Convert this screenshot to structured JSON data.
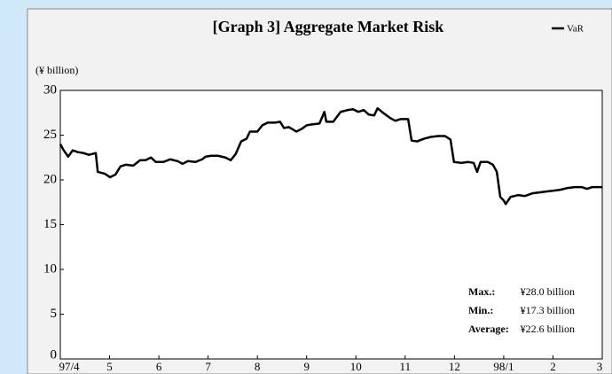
{
  "chart_data": {
    "type": "line",
    "title": "[Graph 3] Aggregate Market Risk",
    "y_label": "(¥ billion)",
    "series": [
      {
        "name": "VaR",
        "color": "#000000",
        "x": [
          0,
          0.07,
          0.16,
          0.25,
          0.36,
          0.47,
          0.58,
          0.72,
          0.76,
          0.9,
          1.01,
          1.12,
          1.22,
          1.33,
          1.48,
          1.62,
          1.73,
          1.84,
          1.94,
          2.09,
          2.23,
          2.38,
          2.48,
          2.59,
          2.74,
          2.88,
          2.95,
          3.06,
          3.2,
          3.35,
          3.46,
          3.56,
          3.67,
          3.78,
          3.85,
          4.0,
          4.1,
          4.21,
          4.36,
          4.46,
          4.54,
          4.64,
          4.79,
          4.9,
          5.0,
          5.11,
          5.26,
          5.36,
          5.4,
          5.54,
          5.69,
          5.83,
          5.94,
          6.05,
          6.16,
          6.26,
          6.37,
          6.44,
          6.55,
          6.7,
          6.8,
          6.91,
          7.06,
          7.13,
          7.24,
          7.38,
          7.52,
          7.67,
          7.81,
          7.92,
          7.99,
          8.14,
          8.28,
          8.39,
          8.46,
          8.53,
          8.68,
          8.78,
          8.86,
          8.93,
          9.0,
          9.04,
          9.14,
          9.29,
          9.43,
          9.58,
          9.72,
          9.86,
          10.01,
          10.15,
          10.3,
          10.44,
          10.58,
          10.69,
          10.8,
          10.94,
          11
        ],
        "values": [
          24.0,
          23.3,
          22.6,
          23.3,
          23.1,
          23.0,
          22.8,
          23.0,
          20.9,
          20.7,
          20.3,
          20.6,
          21.5,
          21.7,
          21.6,
          22.2,
          22.2,
          22.5,
          22.0,
          22.0,
          22.3,
          22.1,
          21.8,
          22.1,
          22.0,
          22.3,
          22.6,
          22.7,
          22.7,
          22.5,
          22.2,
          22.9,
          24.3,
          24.6,
          25.4,
          25.4,
          26.1,
          26.4,
          26.4,
          26.5,
          25.8,
          25.9,
          25.4,
          25.7,
          26.1,
          26.2,
          26.3,
          27.6,
          26.5,
          26.5,
          27.6,
          27.8,
          27.9,
          27.6,
          27.8,
          27.3,
          27.2,
          28.0,
          27.5,
          26.9,
          26.6,
          26.8,
          26.8,
          24.4,
          24.3,
          24.6,
          24.8,
          24.9,
          24.9,
          24.5,
          22.0,
          21.9,
          22.0,
          21.9,
          20.9,
          22.0,
          22.0,
          21.7,
          20.9,
          18.1,
          17.7,
          17.3,
          18.1,
          18.3,
          18.2,
          18.5,
          18.6,
          18.7,
          18.8,
          18.9,
          19.1,
          19.2,
          19.2,
          19.0,
          19.2,
          19.2,
          19.2
        ]
      }
    ],
    "xlim": [
      0,
      11
    ],
    "xticks": [
      {
        "value": 0,
        "label": "97/4"
      },
      {
        "value": 1,
        "label": "5"
      },
      {
        "value": 2,
        "label": "6"
      },
      {
        "value": 3,
        "label": "7"
      },
      {
        "value": 4,
        "label": "8"
      },
      {
        "value": 5,
        "label": "9"
      },
      {
        "value": 6,
        "label": "10"
      },
      {
        "value": 7,
        "label": "11"
      },
      {
        "value": 8,
        "label": "12"
      },
      {
        "value": 9,
        "label": "98/1"
      },
      {
        "value": 10,
        "label": "2"
      },
      {
        "value": 11,
        "label": "3"
      }
    ],
    "ylim": [
      0,
      30
    ],
    "yticks": [
      0,
      5,
      10,
      15,
      20,
      25,
      30
    ],
    "legend": "top-right",
    "annotations": [
      {
        "label": "Max.:",
        "text": "¥28.0 billion"
      },
      {
        "label": "Min.:",
        "text": "¥17.3 billion"
      },
      {
        "label": "Average:",
        "text": "¥22.6 billion"
      }
    ]
  }
}
